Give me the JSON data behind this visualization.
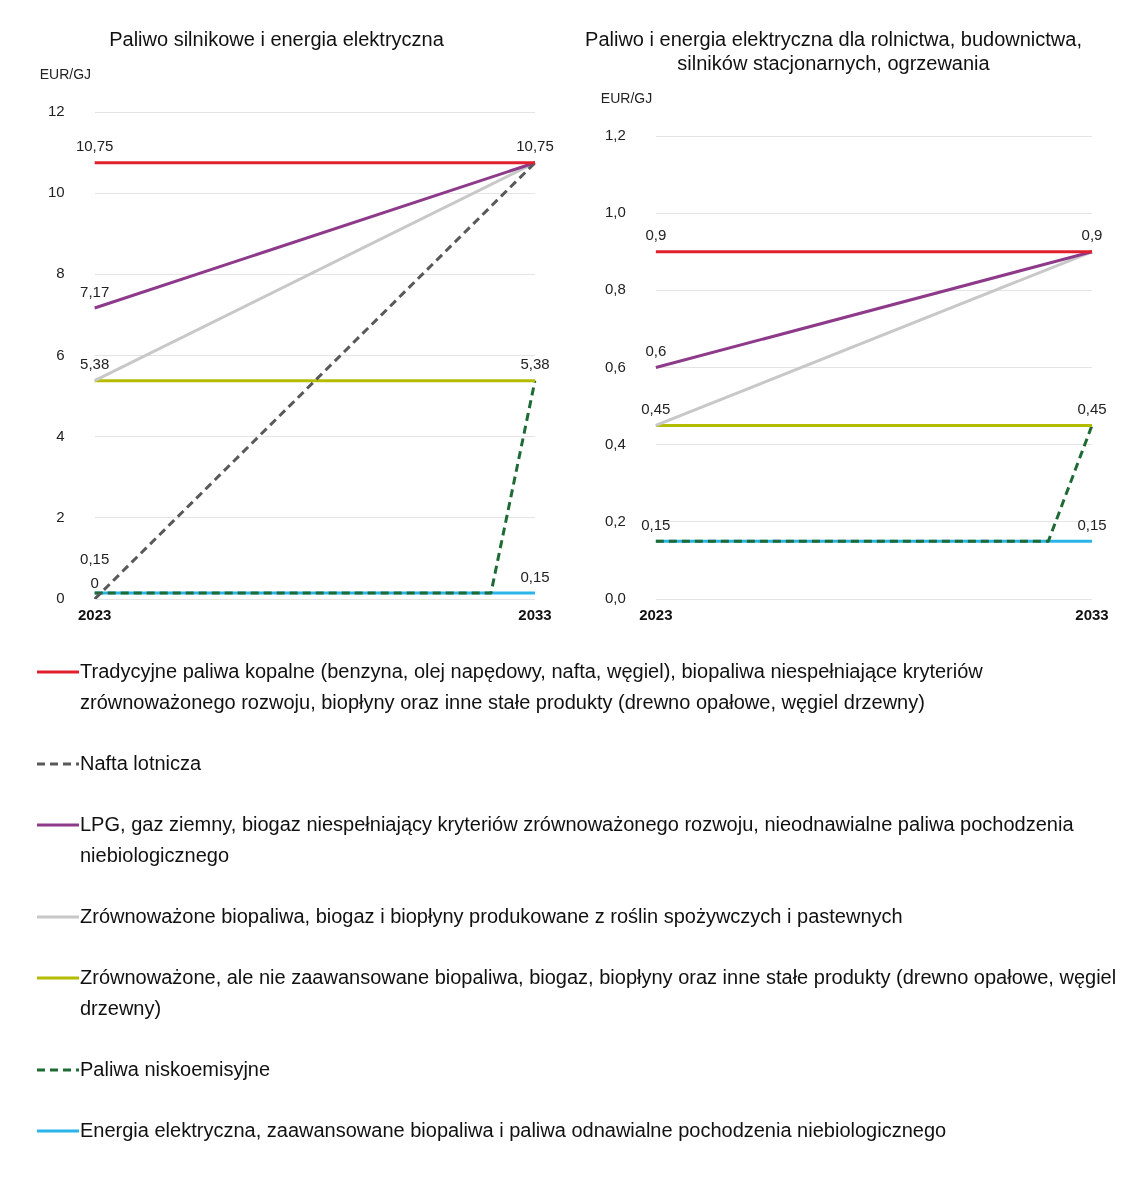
{
  "chart_data": [
    {
      "type": "line",
      "title": "Paliwo silnikowe i energia elektryczna",
      "ylabel": "EUR/GJ",
      "categories": [
        "2023",
        null,
        null,
        null,
        null,
        null,
        null,
        null,
        null,
        null,
        "2033"
      ],
      "ylim": [
        0,
        12
      ],
      "yticks": [
        0,
        2,
        4,
        6,
        8,
        10,
        12
      ],
      "grid": "y",
      "legend": "bottom",
      "marker": "none",
      "series": [
        {
          "name": "Tradycyjne paliwa kopalne (benzyna, olej napędowy, nafta, węgiel), biopaliwa niespełniające kryteriów zrównoważonego rozwoju, biopłyny oraz inne stałe produkty (drewno opałowe, węgiel drzewny)",
          "color": "#e0202c",
          "line_style": "solid",
          "values": [
            10.75,
            null,
            null,
            null,
            null,
            null,
            null,
            null,
            null,
            null,
            10.75
          ],
          "value_labels": [
            "10,75",
            null,
            null,
            null,
            null,
            null,
            null,
            null,
            null,
            null,
            "10,75"
          ]
        },
        {
          "name": "Nafta lotnicza",
          "color": "#595959",
          "line_style": "dashed",
          "values": [
            0,
            null,
            null,
            null,
            null,
            null,
            null,
            null,
            null,
            null,
            10.75
          ],
          "value_labels": [
            "0",
            null,
            null,
            null,
            null,
            null,
            null,
            null,
            null,
            null,
            null
          ]
        },
        {
          "name": "LPG, gaz ziemny, biogaz niespełniający kryteriów zrównoważonego rozwoju, nieodnawialne paliwa pochodzenia niebiologicznego",
          "color": "#8e3a8a",
          "line_style": "solid",
          "values": [
            7.17,
            null,
            null,
            null,
            null,
            null,
            null,
            null,
            null,
            null,
            10.75
          ],
          "value_labels": [
            "7,17",
            null,
            null,
            null,
            null,
            null,
            null,
            null,
            null,
            null,
            null
          ]
        },
        {
          "name": "Zrównoważone biopaliwa, biogaz i biopłyny produkowane z roślin spożywczych i pastewnych",
          "color": "#c8c8c8",
          "line_style": "solid",
          "values": [
            5.38,
            null,
            null,
            null,
            null,
            null,
            null,
            null,
            null,
            null,
            10.75
          ],
          "value_labels": [
            "5,38",
            null,
            null,
            null,
            null,
            null,
            null,
            null,
            null,
            null,
            null
          ]
        },
        {
          "name": "Zrównoważone, ale nie zaawansowane biopaliwa, biogaz, biopłyny oraz inne stałe produkty (drewno opałowe, węgiel drzewny)",
          "color": "#b4bc00",
          "line_style": "solid",
          "values": [
            5.38,
            null,
            null,
            null,
            null,
            null,
            null,
            null,
            null,
            null,
            5.38
          ],
          "value_labels": [
            null,
            null,
            null,
            null,
            null,
            null,
            null,
            null,
            null,
            null,
            "5,38"
          ]
        },
        {
          "name": "Paliwa niskoemisyjne",
          "color": "#1e6a34",
          "line_style": "dashed",
          "values": [
            0.15,
            null,
            null,
            null,
            null,
            null,
            null,
            null,
            null,
            0.15,
            5.38
          ]
        },
        {
          "name": "Energia elektryczna, zaawansowane biopaliwa i paliwa odnawialne pochodzenia niebiologicznego",
          "color": "#2ab4e8",
          "line_style": "solid",
          "values": [
            0.15,
            null,
            null,
            null,
            null,
            null,
            null,
            null,
            null,
            null,
            0.15
          ],
          "value_labels": [
            "0,15",
            null,
            null,
            null,
            null,
            null,
            null,
            null,
            null,
            null,
            "0,15"
          ]
        }
      ]
    },
    {
      "type": "line",
      "title": "Paliwo i energia elektryczna dla rolnictwa, budownictwa, silników stacjonarnych, ogrzewania",
      "ylabel": "EUR/GJ",
      "categories": [
        "2023",
        null,
        null,
        null,
        null,
        null,
        null,
        null,
        null,
        null,
        "2033"
      ],
      "ylim": [
        0,
        1.2
      ],
      "yticks": [
        {
          "value": 0,
          "label": "0,0"
        },
        {
          "value": 0.2,
          "label": "0,2"
        },
        {
          "value": 0.4,
          "label": "0,4"
        },
        {
          "value": 0.6,
          "label": "0,6"
        },
        {
          "value": 0.8,
          "label": "0,8"
        },
        {
          "value": 1,
          "label": "1,0"
        },
        {
          "value": 1.2,
          "label": "1,2"
        }
      ],
      "grid": "y",
      "marker": "none",
      "series": [
        {
          "color": "#e0202c",
          "line_style": "solid",
          "values": [
            0.9,
            null,
            null,
            null,
            null,
            null,
            null,
            null,
            null,
            null,
            0.9
          ],
          "value_labels": [
            "0,9",
            null,
            null,
            null,
            null,
            null,
            null,
            null,
            null,
            null,
            "0,9"
          ]
        },
        {
          "color": "#8e3a8a",
          "line_style": "solid",
          "values": [
            0.6,
            null,
            null,
            null,
            null,
            null,
            null,
            null,
            null,
            null,
            0.9
          ],
          "value_labels": [
            "0,6",
            null,
            null,
            null,
            null,
            null,
            null,
            null,
            null,
            null,
            null
          ]
        },
        {
          "color": "#c8c8c8",
          "line_style": "solid",
          "values": [
            0.45,
            null,
            null,
            null,
            null,
            null,
            null,
            null,
            null,
            null,
            0.9
          ],
          "value_labels": [
            "0,45",
            null,
            null,
            null,
            null,
            null,
            null,
            null,
            null,
            null,
            null
          ]
        },
        {
          "color": "#b4bc00",
          "line_style": "solid",
          "values": [
            0.45,
            null,
            null,
            null,
            null,
            null,
            null,
            null,
            null,
            null,
            0.45
          ],
          "value_labels": [
            null,
            null,
            null,
            null,
            null,
            null,
            null,
            null,
            null,
            null,
            "0,45"
          ]
        },
        {
          "color": "#1e6a34",
          "line_style": "dashed",
          "values": [
            0.15,
            null,
            null,
            null,
            null,
            null,
            null,
            null,
            null,
            0.15,
            0.45
          ]
        },
        {
          "color": "#2ab4e8",
          "line_style": "solid",
          "values": [
            0.15,
            null,
            null,
            null,
            null,
            null,
            null,
            null,
            null,
            null,
            0.15
          ],
          "value_labels": [
            "0,15",
            null,
            null,
            null,
            null,
            null,
            null,
            null,
            null,
            null,
            "0,15"
          ]
        }
      ]
    }
  ]
}
